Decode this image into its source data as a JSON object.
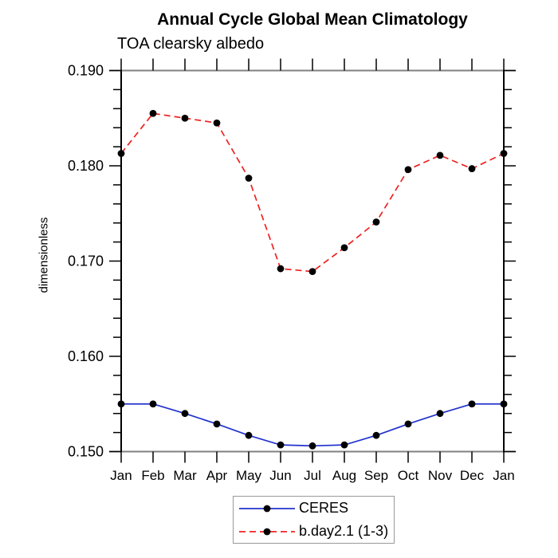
{
  "chart_data": {
    "type": "line",
    "title": "Annual Cycle Global Mean Climatology",
    "subtitle": "TOA clearsky albedo",
    "ylabel": "dimensionless",
    "xlabel": "",
    "categories": [
      "Jan",
      "Feb",
      "Mar",
      "Apr",
      "May",
      "Jun",
      "Jul",
      "Aug",
      "Sep",
      "Oct",
      "Nov",
      "Dec",
      "Jan"
    ],
    "series": [
      {
        "name": "CERES",
        "color": "#2233cc",
        "line_style": "solid",
        "marker": "filled-circle",
        "marker_color": "#000000",
        "values": [
          0.155,
          0.155,
          0.154,
          0.1529,
          0.1517,
          0.1507,
          0.1506,
          0.1507,
          0.1517,
          0.1529,
          0.154,
          0.155,
          0.155
        ]
      },
      {
        "name": "b.day2.1 (1-3)",
        "color": "#ee2222",
        "line_style": "dashed",
        "marker": "filled-circle",
        "marker_color": "#000000",
        "values": [
          0.1813,
          0.1855,
          0.185,
          0.1845,
          0.1787,
          0.1692,
          0.1689,
          0.1714,
          0.1741,
          0.1796,
          0.1811,
          0.1797,
          0.1813
        ]
      }
    ],
    "ylim": [
      0.15,
      0.19
    ],
    "y_tick_values": [
      0.15,
      0.16,
      0.17,
      0.18,
      0.19
    ],
    "y_tick_labels": [
      "0.150",
      "0.160",
      "0.170",
      "0.180",
      "0.190"
    ],
    "y_minor_step": 0.002,
    "grid": false,
    "legend_position": "bottom-center"
  },
  "colors": {
    "background": "#ffffff",
    "frame_horizontal": "#808080",
    "frame_vertical": "#000000",
    "tick": "#000000",
    "text": "#000000",
    "marker": "#000000",
    "legend_border": "#999999"
  }
}
